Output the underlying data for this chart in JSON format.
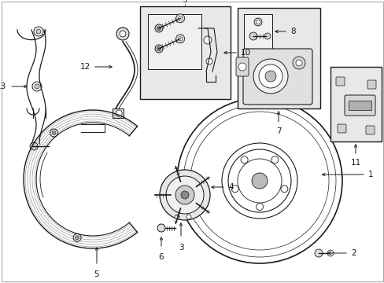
{
  "bg_color": "#ffffff",
  "line_color": "#1a1a1a",
  "fig_width": 4.89,
  "fig_height": 3.6,
  "dpi": 100,
  "border_color": "#888888",
  "shade_color": "#e8e8e8"
}
